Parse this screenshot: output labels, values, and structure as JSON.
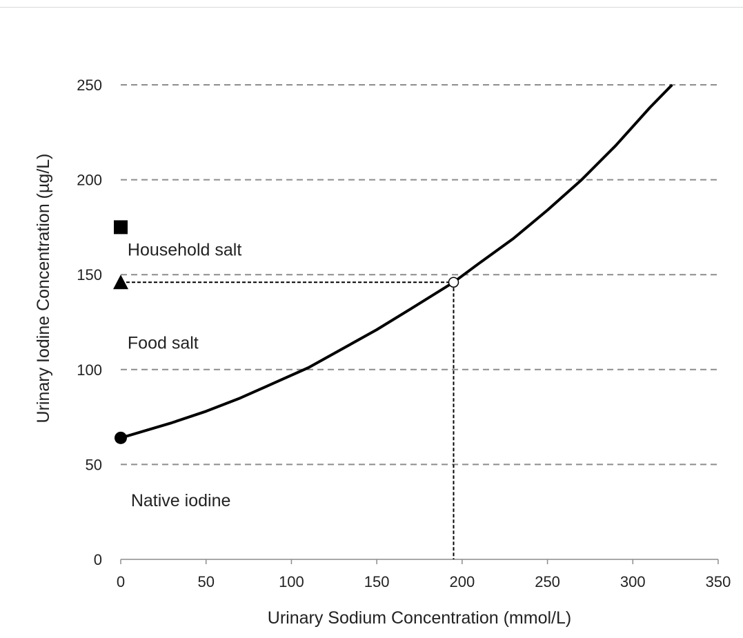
{
  "chart_data": {
    "type": "line",
    "title": "",
    "xlabel": "Urinary Sodium Concentration (mmol/L)",
    "ylabel": "Urinary Iodine Concentration (µg/L)",
    "xlim": [
      0,
      350
    ],
    "ylim": [
      0,
      250
    ],
    "x_ticks": [
      0,
      50,
      100,
      150,
      200,
      250,
      300,
      350
    ],
    "y_ticks": [
      0,
      50,
      100,
      150,
      200,
      250
    ],
    "grid": "horizontal dashed",
    "series": [
      {
        "points": [
          [
            0,
            64
          ],
          [
            30,
            72
          ],
          [
            50,
            78
          ],
          [
            70,
            85
          ],
          [
            90,
            93
          ],
          [
            110,
            101
          ],
          [
            130,
            111
          ],
          [
            150,
            121
          ],
          [
            170,
            132
          ],
          [
            195,
            146
          ],
          [
            210,
            156
          ],
          [
            230,
            169
          ],
          [
            250,
            184
          ],
          [
            270,
            200
          ],
          [
            290,
            218
          ],
          [
            310,
            238
          ],
          [
            323,
            250
          ]
        ]
      }
    ],
    "markers": [
      {
        "shape": "circle",
        "filled": true,
        "x": 0,
        "y": 64
      },
      {
        "shape": "triangle",
        "filled": true,
        "x": 0,
        "y": 146
      },
      {
        "shape": "square",
        "filled": true,
        "x": 0,
        "y": 175
      },
      {
        "shape": "circle",
        "filled": false,
        "x": 195,
        "y": 146
      }
    ],
    "guide_lines": [
      {
        "from": [
          0,
          146
        ],
        "to": [
          195,
          146
        ]
      },
      {
        "from": [
          195,
          146
        ],
        "to": [
          195,
          0
        ]
      }
    ],
    "annotations": [
      {
        "text": "Household salt",
        "x": 4,
        "y": 160
      },
      {
        "text": "Food salt",
        "x": 4,
        "y": 111
      },
      {
        "text": "Native iodine",
        "x": 6,
        "y": 28
      }
    ],
    "colors": {
      "line": "#000000",
      "grid": "#8c8c8c",
      "axis": "#8c8c8c",
      "text": "#222222"
    }
  }
}
